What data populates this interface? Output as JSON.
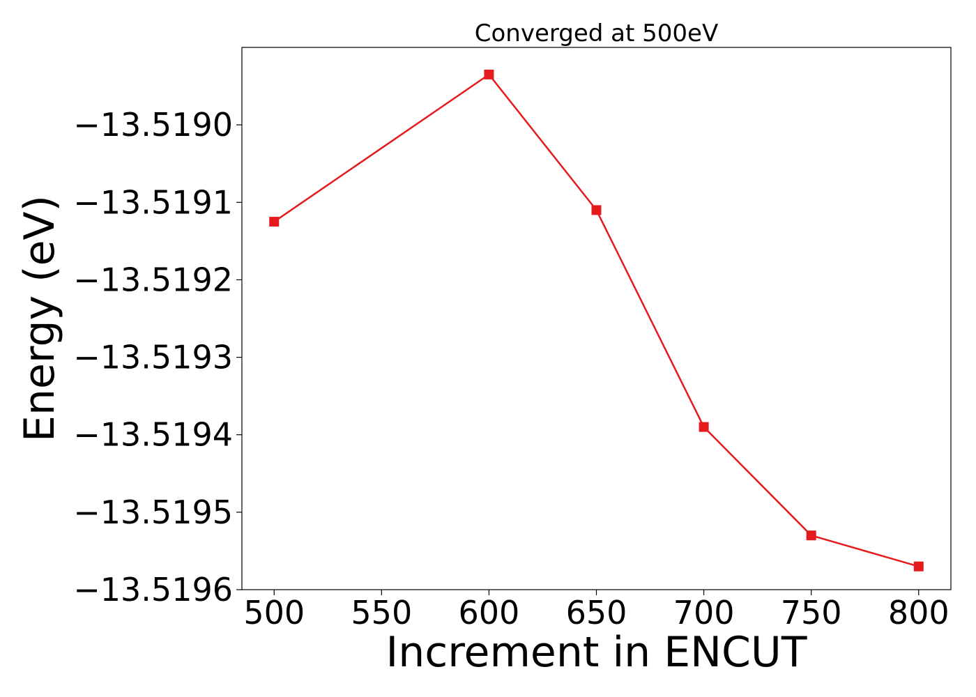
{
  "chart_data": {
    "type": "line",
    "title": "Converged at 500eV",
    "xlabel": "Increment in ENCUT",
    "ylabel": "Energy (eV)",
    "x": [
      500,
      600,
      650,
      700,
      750,
      800
    ],
    "series": [
      {
        "values": [
          -13.519125,
          -13.518935,
          -13.51911,
          -13.51939,
          -13.51953,
          -13.51957
        ],
        "color": "#e41a1c",
        "marker": "square"
      }
    ],
    "xticks": [
      500,
      550,
      600,
      650,
      700,
      750,
      800
    ],
    "xtick_labels": [
      "500",
      "550",
      "600",
      "650",
      "700",
      "750",
      "800"
    ],
    "yticks": [
      -13.519,
      -13.5191,
      -13.5192,
      -13.5193,
      -13.5194,
      -13.5195,
      -13.5196
    ],
    "ytick_labels": [
      "−13.5190",
      "−13.5191",
      "−13.5192",
      "−13.5193",
      "−13.5194",
      "−13.5195",
      "−13.5196"
    ],
    "xlim": [
      485,
      815
    ],
    "ylim": [
      -13.5196,
      -13.5189
    ],
    "grid": false,
    "legend": "none"
  }
}
